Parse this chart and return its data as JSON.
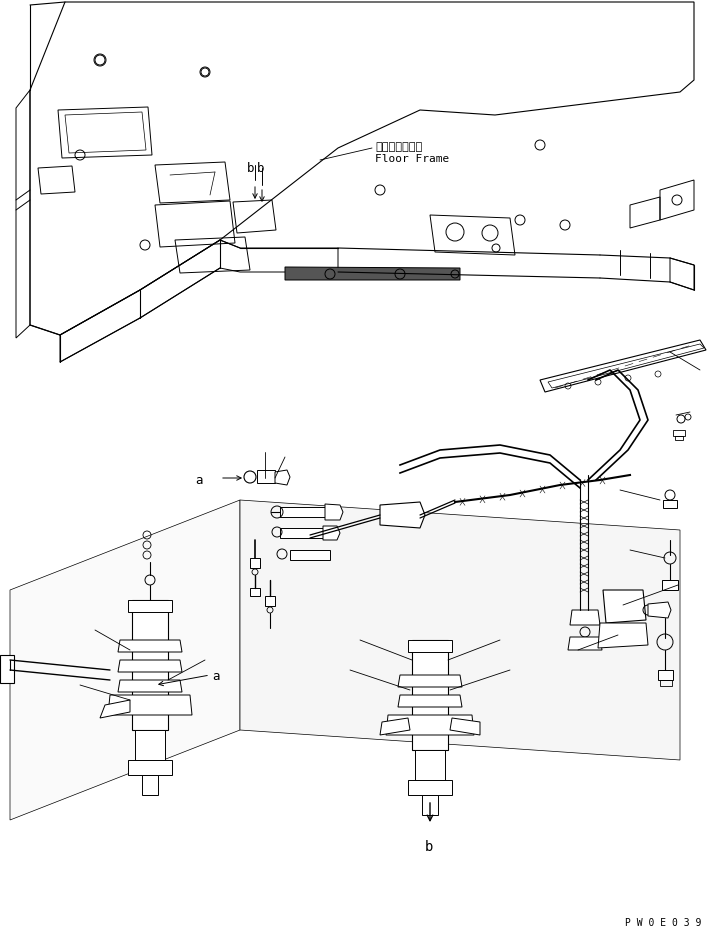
{
  "bg_color": "#ffffff",
  "line_color": "#000000",
  "text_color": "#000000",
  "fig_width": 7.14,
  "fig_height": 9.36,
  "dpi": 100,
  "label_japanese": "フロアフレーム",
  "label_english": "Floor Frame",
  "watermark": "P W 0 E 0 3 9"
}
